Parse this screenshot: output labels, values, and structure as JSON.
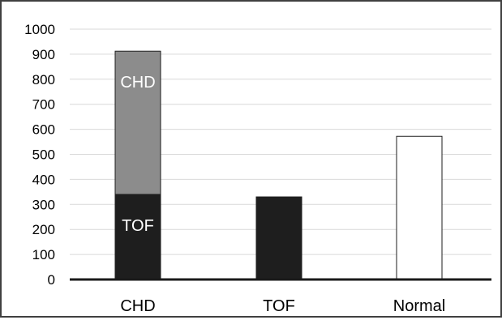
{
  "chart_data": {
    "type": "bar",
    "stacked": true,
    "categories": [
      "CHD",
      "TOF",
      "Normal"
    ],
    "ylim": [
      0,
      1000
    ],
    "yticks": [
      0,
      100,
      200,
      300,
      400,
      500,
      600,
      700,
      800,
      900,
      1000
    ],
    "grid": true,
    "segments": [
      {
        "category": "CHD",
        "start": 0,
        "end": 340,
        "fill": "#1e1e1e",
        "label": "TOF",
        "label_color": "#ffffff"
      },
      {
        "category": "CHD",
        "start": 340,
        "end": 912,
        "fill": "#8c8c8c",
        "label": "CHD",
        "label_color": "#ffffff"
      },
      {
        "category": "TOF",
        "start": 0,
        "end": 330,
        "fill": "#1e1e1e",
        "label": "",
        "label_color": "#ffffff"
      },
      {
        "category": "Normal",
        "start": 0,
        "end": 572,
        "fill": "#ffffff",
        "label": "",
        "label_color": "#000000"
      }
    ]
  }
}
